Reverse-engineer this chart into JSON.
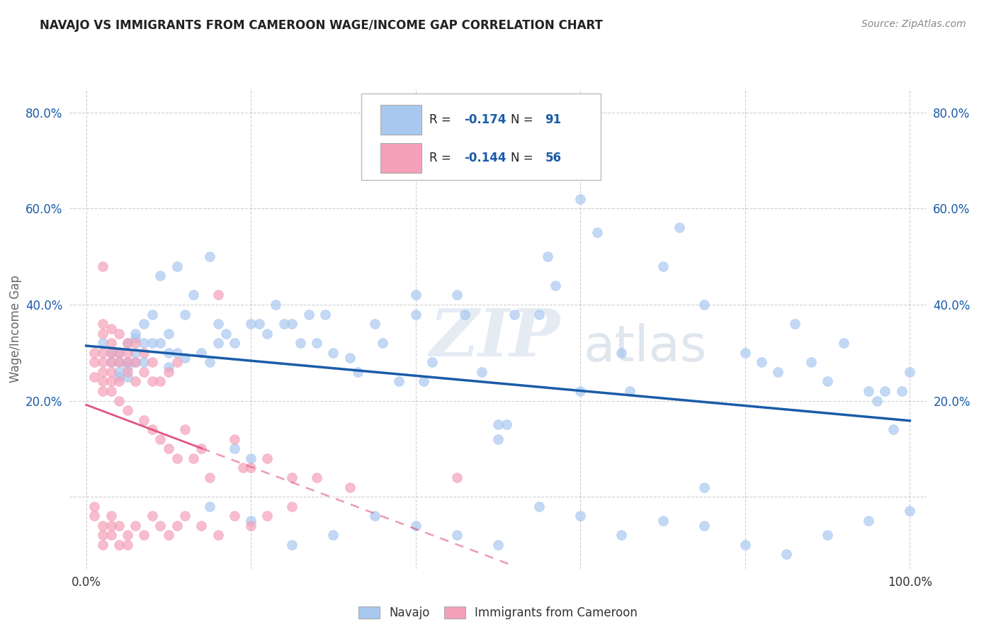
{
  "title": "NAVAJO VS IMMIGRANTS FROM CAMEROON WAGE/INCOME GAP CORRELATION CHART",
  "source": "Source: ZipAtlas.com",
  "ylabel": "Wage/Income Gap",
  "xlim": [
    -0.02,
    1.02
  ],
  "ylim": [
    -0.15,
    0.85
  ],
  "x_ticks": [
    0.0,
    1.0
  ],
  "x_tick_labels": [
    "0.0%",
    "100.0%"
  ],
  "y_ticks": [
    0.0,
    0.2,
    0.4,
    0.6,
    0.8
  ],
  "y_tick_labels": [
    "",
    "20.0%",
    "40.0%",
    "60.0%",
    "80.0%"
  ],
  "navajo_R": "-0.174",
  "navajo_N": "91",
  "cameroon_R": "-0.144",
  "cameroon_N": "56",
  "navajo_color": "#a8c8f0",
  "cameroon_color": "#f4a0b8",
  "navajo_line_color": "#1a5ca8",
  "cameroon_line_color": "#e05580",
  "background_color": "#ffffff",
  "grid_color": "#cccccc",
  "watermark_part1": "ZIP",
  "watermark_part2": "atlas",
  "navajo_x": [
    0.02,
    0.03,
    0.03,
    0.04,
    0.04,
    0.04,
    0.04,
    0.05,
    0.05,
    0.05,
    0.05,
    0.06,
    0.06,
    0.06,
    0.06,
    0.07,
    0.07,
    0.07,
    0.08,
    0.08,
    0.09,
    0.09,
    0.1,
    0.1,
    0.1,
    0.11,
    0.11,
    0.12,
    0.12,
    0.13,
    0.14,
    0.15,
    0.15,
    0.16,
    0.16,
    0.17,
    0.18,
    0.2,
    0.21,
    0.22,
    0.23,
    0.24,
    0.25,
    0.26,
    0.27,
    0.28,
    0.29,
    0.3,
    0.32,
    0.33,
    0.35,
    0.36,
    0.38,
    0.4,
    0.4,
    0.41,
    0.42,
    0.45,
    0.46,
    0.48,
    0.5,
    0.51,
    0.52,
    0.55,
    0.56,
    0.57,
    0.6,
    0.62,
    0.65,
    0.66,
    0.7,
    0.72,
    0.75,
    0.8,
    0.82,
    0.84,
    0.86,
    0.88,
    0.9,
    0.92,
    0.95,
    0.96,
    0.97,
    0.98,
    0.99,
    1.0,
    0.18,
    0.2,
    0.5,
    0.6,
    0.75
  ],
  "navajo_y": [
    0.32,
    0.3,
    0.28,
    0.3,
    0.28,
    0.26,
    0.25,
    0.32,
    0.28,
    0.27,
    0.25,
    0.34,
    0.33,
    0.3,
    0.28,
    0.36,
    0.32,
    0.28,
    0.38,
    0.32,
    0.46,
    0.32,
    0.34,
    0.3,
    0.27,
    0.48,
    0.3,
    0.38,
    0.29,
    0.42,
    0.3,
    0.5,
    0.28,
    0.36,
    0.32,
    0.34,
    0.32,
    0.36,
    0.36,
    0.34,
    0.4,
    0.36,
    0.36,
    0.32,
    0.38,
    0.32,
    0.38,
    0.3,
    0.29,
    0.26,
    0.36,
    0.32,
    0.24,
    0.42,
    0.38,
    0.24,
    0.28,
    0.42,
    0.38,
    0.26,
    0.15,
    0.15,
    0.38,
    0.38,
    0.5,
    0.44,
    0.62,
    0.55,
    0.3,
    0.22,
    0.48,
    0.56,
    0.4,
    0.3,
    0.28,
    0.26,
    0.36,
    0.28,
    0.24,
    0.32,
    0.22,
    0.2,
    0.22,
    0.14,
    0.22,
    0.26,
    0.1,
    0.08,
    0.12,
    0.22,
    0.02
  ],
  "cameroon_x": [
    0.01,
    0.01,
    0.01,
    0.02,
    0.02,
    0.02,
    0.02,
    0.02,
    0.02,
    0.02,
    0.02,
    0.03,
    0.03,
    0.03,
    0.03,
    0.03,
    0.03,
    0.03,
    0.04,
    0.04,
    0.04,
    0.04,
    0.04,
    0.05,
    0.05,
    0.05,
    0.05,
    0.05,
    0.06,
    0.06,
    0.06,
    0.07,
    0.07,
    0.07,
    0.08,
    0.08,
    0.08,
    0.09,
    0.09,
    0.1,
    0.1,
    0.11,
    0.11,
    0.12,
    0.13,
    0.14,
    0.15,
    0.16,
    0.18,
    0.19,
    0.2,
    0.22,
    0.25,
    0.28,
    0.32,
    0.45
  ],
  "cameroon_y": [
    0.3,
    0.28,
    0.25,
    0.48,
    0.36,
    0.34,
    0.3,
    0.28,
    0.26,
    0.24,
    0.22,
    0.35,
    0.32,
    0.3,
    0.28,
    0.26,
    0.24,
    0.22,
    0.34,
    0.3,
    0.28,
    0.24,
    0.2,
    0.32,
    0.3,
    0.28,
    0.26,
    0.18,
    0.32,
    0.28,
    0.24,
    0.3,
    0.26,
    0.16,
    0.28,
    0.24,
    0.14,
    0.24,
    0.12,
    0.26,
    0.1,
    0.28,
    0.08,
    0.14,
    0.08,
    0.1,
    0.04,
    0.42,
    0.12,
    0.06,
    0.06,
    0.08,
    0.04,
    0.04,
    0.02,
    0.04
  ],
  "navajo_extra_low_x": [
    0.15,
    0.2,
    0.25,
    0.3,
    0.35,
    0.4,
    0.45,
    0.5,
    0.55,
    0.6,
    0.65,
    0.7,
    0.75,
    0.8,
    0.85,
    0.9,
    0.95,
    1.0
  ],
  "navajo_extra_low_y": [
    -0.02,
    -0.05,
    -0.1,
    -0.08,
    -0.04,
    -0.06,
    -0.08,
    -0.1,
    -0.02,
    -0.04,
    -0.08,
    -0.05,
    -0.06,
    -0.1,
    -0.12,
    -0.08,
    -0.05,
    -0.03
  ],
  "cameroon_extra_low_x": [
    0.01,
    0.01,
    0.02,
    0.02,
    0.02,
    0.03,
    0.03,
    0.03,
    0.04,
    0.04,
    0.05,
    0.05,
    0.06,
    0.07,
    0.08,
    0.09,
    0.1,
    0.11,
    0.12,
    0.14,
    0.16,
    0.18,
    0.2,
    0.22,
    0.25
  ],
  "cameroon_extra_low_y": [
    -0.02,
    -0.04,
    -0.06,
    -0.08,
    -0.1,
    -0.04,
    -0.06,
    -0.08,
    -0.06,
    -0.1,
    -0.08,
    -0.1,
    -0.06,
    -0.08,
    -0.04,
    -0.06,
    -0.08,
    -0.06,
    -0.04,
    -0.06,
    -0.08,
    -0.04,
    -0.06,
    -0.04,
    -0.02
  ]
}
